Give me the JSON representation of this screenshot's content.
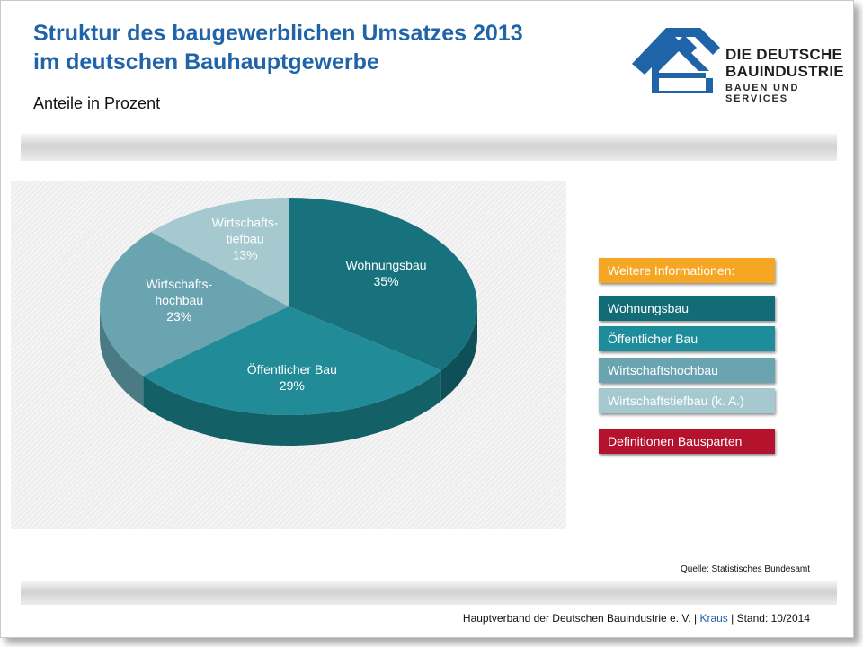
{
  "header": {
    "title_line1": "Struktur des baugewerblichen Umsatzes 2013",
    "title_line2": "im deutschen Bauhauptgewerbe",
    "subtitle": "Anteile in Prozent"
  },
  "logo": {
    "line1": "DIE DEUTSCHE",
    "line2": "BAUINDUSTRIE",
    "line3": "BAUEN UND SERVICES",
    "color": "#1f63a8"
  },
  "chart_data": {
    "type": "pie",
    "title": "Struktur des baugewerblichen Umsatzes 2013 im deutschen Bauhauptgewerbe",
    "subtitle": "Anteile in Prozent",
    "slices": [
      {
        "label_lines": [
          "Wohnungsbau"
        ],
        "value": 35,
        "value_label": "35%",
        "color": "#17727d",
        "side": "#0f4f57"
      },
      {
        "label_lines": [
          "Öffentlicher Bau"
        ],
        "value": 29,
        "value_label": "29%",
        "color": "#218b98",
        "side": "#146067"
      },
      {
        "label_lines": [
          "Wirtschafts-",
          "hochbau"
        ],
        "value": 23,
        "value_label": "23%",
        "color": "#6aa4b1",
        "side": "#4a7a84"
      },
      {
        "label_lines": [
          "Wirtschafts-",
          "tiefbau"
        ],
        "value": 13,
        "value_label": "13%",
        "color": "#a6c8cf",
        "side": "#7a9ca3"
      }
    ],
    "legend": "none",
    "three_d": true
  },
  "sidebar": {
    "info_label": "Weitere Informationen:",
    "buttons": [
      {
        "label": "Wohnungsbau",
        "color": "#126c77"
      },
      {
        "label": "Öffentlicher Bau",
        "color": "#1e8d9b"
      },
      {
        "label": "Wirtschaftshochbau",
        "color": "#6aa4b1"
      },
      {
        "label": "Wirtschaftstiefbau (k. A.)",
        "color": "#a6c8cf"
      },
      {
        "label": "Definitionen Bausparten",
        "color": "#b5122d"
      }
    ],
    "info_color": "#f5a623"
  },
  "source": "Quelle: Statistisches Bundesamt",
  "footer": {
    "org": "Hauptverband der Deutschen Bauindustrie e. V. |",
    "author": "Kraus",
    "stand": "| Stand: 10/2014"
  }
}
